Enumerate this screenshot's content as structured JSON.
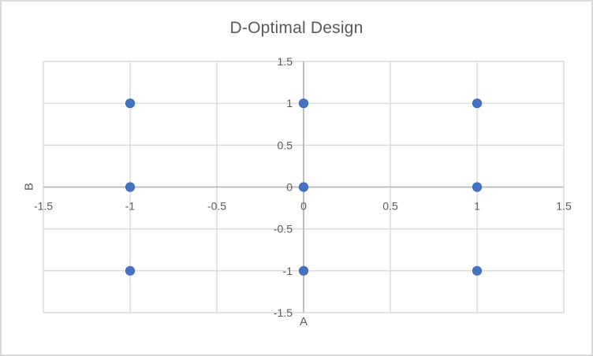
{
  "chart_data": {
    "type": "scatter",
    "title": "D-Optimal Design",
    "xlabel": "A",
    "ylabel": "B",
    "xlim": [
      -1.5,
      1.5
    ],
    "ylim": [
      -1.5,
      1.5
    ],
    "xticks": [
      -1.5,
      -1,
      -0.5,
      0,
      0.5,
      1,
      1.5
    ],
    "xtick_labels": [
      "-1.5",
      "-1",
      "-0.5",
      "0",
      "0.5",
      "1",
      "1.5"
    ],
    "yticks": [
      -1.5,
      -1,
      -0.5,
      0,
      0.5,
      1,
      1.5
    ],
    "ytick_labels": [
      "-1.5",
      "-1",
      "-0.5",
      "0",
      "0.5",
      "1",
      "1.5"
    ],
    "grid": true,
    "legend": false,
    "points": [
      [
        -1,
        1
      ],
      [
        0,
        1
      ],
      [
        1,
        1
      ],
      [
        -1,
        0
      ],
      [
        0,
        0
      ],
      [
        1,
        0
      ],
      [
        -1,
        -1
      ],
      [
        0,
        -1
      ],
      [
        1,
        -1
      ]
    ],
    "colors": {
      "marker_fill": "#4472c4",
      "marker_edge": "#3864ad",
      "gridline": "#d9d9d9",
      "axis_line": "#b7b7b7",
      "text": "#595959",
      "chart_border": "#d9d9d9",
      "background": "#ffffff"
    }
  }
}
